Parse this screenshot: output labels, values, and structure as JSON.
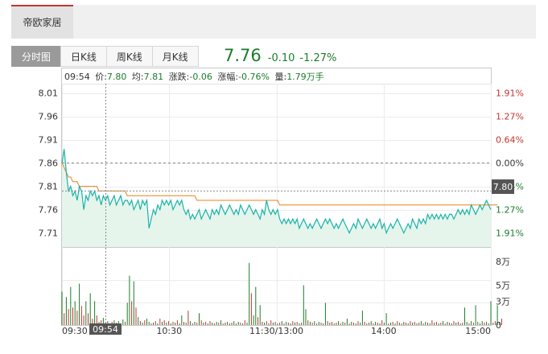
{
  "header": {
    "stock_name": "帝欧家居"
  },
  "tabs": [
    {
      "label": "分时图",
      "active": true
    },
    {
      "label": "日K线",
      "active": false
    },
    {
      "label": "周K线",
      "active": false
    },
    {
      "label": "月K线",
      "active": false
    }
  ],
  "quote": {
    "price": "7.76",
    "change": "-0.10",
    "change_pct": "-1.27%",
    "color": "#1a7d2a"
  },
  "info_line": {
    "time": "09:54",
    "price_label": "价:",
    "price": "7.80",
    "avg_label": "均:",
    "avg": "7.81",
    "chg_label": "涨跌:",
    "chg": "-0.06",
    "pct_label": "涨幅:",
    "pct": "-0.76%",
    "vol_label": "量:",
    "vol": "1.79万手"
  },
  "cursor": {
    "time_label": "09:54",
    "price_label": "7.80"
  },
  "colors": {
    "price_line": "#19b3a7",
    "avg_line": "#e8821e",
    "area_fill": "#e6f5ec",
    "up": "#c23531",
    "down": "#1a7d2a"
  },
  "chart_data": {
    "type": "line",
    "prev_close": 7.86,
    "price_axis": [
      "8.01",
      "7.96",
      "7.91",
      "7.86",
      "7.81",
      "7.76",
      "7.71"
    ],
    "pct_axis": [
      "1.91%",
      "1.27%",
      "0.64%",
      "0.00%",
      "0.64%",
      "1.27%",
      "1.91%"
    ],
    "volume_axis": [
      "8万",
      "5万",
      "3万",
      "0"
    ],
    "time_axis": [
      "09:30",
      "10:30",
      "11:30/13:00",
      "14:00",
      "15:00"
    ],
    "ylim": [
      7.68,
      8.03
    ],
    "volume_max": 85000,
    "price_series": [
      7.86,
      7.89,
      7.84,
      7.8,
      7.81,
      7.79,
      7.8,
      7.78,
      7.81,
      7.8,
      7.76,
      7.79,
      7.78,
      7.8,
      7.79,
      7.8,
      7.78,
      7.79,
      7.77,
      7.79,
      7.78,
      7.79,
      7.77,
      7.78,
      7.79,
      7.77,
      7.78,
      7.79,
      7.77,
      7.78,
      7.78,
      7.77,
      7.78,
      7.76,
      7.77,
      7.78,
      7.76,
      7.78,
      7.77,
      7.78,
      7.72,
      7.74,
      7.76,
      7.75,
      7.77,
      7.76,
      7.78,
      7.77,
      7.78,
      7.77,
      7.78,
      7.76,
      7.77,
      7.78,
      7.77,
      7.78,
      7.76,
      7.75,
      7.76,
      7.74,
      7.75,
      7.74,
      7.75,
      7.76,
      7.74,
      7.75,
      7.76,
      7.75,
      7.74,
      7.76,
      7.75,
      7.76,
      7.75,
      7.77,
      7.76,
      7.75,
      7.76,
      7.77,
      7.76,
      7.75,
      7.76,
      7.75,
      7.77,
      7.76,
      7.75,
      7.76,
      7.77,
      7.76,
      7.75,
      7.76,
      7.75,
      7.74,
      7.76,
      7.75,
      7.78,
      7.76,
      7.75,
      7.76,
      7.75,
      7.76,
      7.74,
      7.73,
      7.74,
      7.73,
      7.74,
      7.73,
      7.74,
      7.73,
      7.74,
      7.72,
      7.73,
      7.74,
      7.73,
      7.72,
      7.73,
      7.72,
      7.73,
      7.74,
      7.73,
      7.72,
      7.73,
      7.74,
      7.73,
      7.74,
      7.73,
      7.72,
      7.73,
      7.72,
      7.73,
      7.74,
      7.73,
      7.72,
      7.71,
      7.72,
      7.73,
      7.72,
      7.74,
      7.73,
      7.72,
      7.73,
      7.74,
      7.73,
      7.72,
      7.73,
      7.72,
      7.73,
      7.74,
      7.72,
      7.73,
      7.71,
      7.72,
      7.73,
      7.72,
      7.73,
      7.74,
      7.73,
      7.72,
      7.71,
      7.72,
      7.73,
      7.72,
      7.74,
      7.73,
      7.72,
      7.74,
      7.73,
      7.74,
      7.73,
      7.75,
      7.74,
      7.75,
      7.74,
      7.75,
      7.74,
      7.75,
      7.74,
      7.75,
      7.74,
      7.75,
      7.75,
      7.74,
      7.75,
      7.76,
      7.75,
      7.76,
      7.75,
      7.76,
      7.75,
      7.77,
      7.76,
      7.75,
      7.76,
      7.77,
      7.76,
      7.77,
      7.78,
      7.77,
      7.76
    ],
    "avg_series": [
      7.86,
      7.85,
      7.84,
      7.83,
      7.83,
      7.82,
      7.82,
      7.82,
      7.81,
      7.81,
      7.81,
      7.81,
      7.81,
      7.81,
      7.81,
      7.81,
      7.81,
      7.8,
      7.8,
      7.8,
      7.8,
      7.8,
      7.8,
      7.8,
      7.8,
      7.8,
      7.8,
      7.8,
      7.8,
      7.8,
      7.79,
      7.79,
      7.79,
      7.79,
      7.79,
      7.79,
      7.79,
      7.79,
      7.79,
      7.79,
      7.79,
      7.79,
      7.79,
      7.79,
      7.79,
      7.79,
      7.79,
      7.79,
      7.79,
      7.79,
      7.79,
      7.79,
      7.79,
      7.79,
      7.79,
      7.79,
      7.79,
      7.79,
      7.79,
      7.79,
      7.79,
      7.79,
      7.78,
      7.78,
      7.78,
      7.78,
      7.78,
      7.78,
      7.78,
      7.78,
      7.78,
      7.78,
      7.78,
      7.78,
      7.78,
      7.78,
      7.78,
      7.78,
      7.78,
      7.78,
      7.78,
      7.78,
      7.78,
      7.78,
      7.78,
      7.78,
      7.78,
      7.78,
      7.78,
      7.78,
      7.78,
      7.78,
      7.78,
      7.78,
      7.78,
      7.78,
      7.78,
      7.78,
      7.78,
      7.78,
      7.77,
      7.77,
      7.77,
      7.77,
      7.77,
      7.77,
      7.77,
      7.77,
      7.77,
      7.77,
      7.77,
      7.77,
      7.77,
      7.77,
      7.77,
      7.77,
      7.77,
      7.77,
      7.77,
      7.77,
      7.77,
      7.77,
      7.77,
      7.77,
      7.77,
      7.77,
      7.77,
      7.77,
      7.77,
      7.77,
      7.77,
      7.77,
      7.77,
      7.77,
      7.77,
      7.77,
      7.77,
      7.77,
      7.77,
      7.77,
      7.77,
      7.77,
      7.77,
      7.77,
      7.77,
      7.77,
      7.77,
      7.77,
      7.77,
      7.77,
      7.77,
      7.77,
      7.77,
      7.77,
      7.77,
      7.77,
      7.77,
      7.77,
      7.77,
      7.77,
      7.77,
      7.77,
      7.77,
      7.77,
      7.77,
      7.77,
      7.77,
      7.77,
      7.77,
      7.77,
      7.77,
      7.77,
      7.77,
      7.77,
      7.77,
      7.77,
      7.77,
      7.77,
      7.77,
      7.77,
      7.77,
      7.77,
      7.77,
      7.77,
      7.77,
      7.77,
      7.77,
      7.77,
      7.77,
      7.77,
      7.77,
      7.77,
      7.77,
      7.77,
      7.77,
      7.77,
      7.77,
      7.77,
      7.77,
      7.77,
      7.77
    ],
    "volume_series": [
      42000,
      15000,
      35000,
      20000,
      48000,
      22000,
      30000,
      18000,
      52000,
      24000,
      12000,
      30000,
      15000,
      40000,
      8000,
      30000,
      12000,
      4000,
      6000,
      9000,
      3000,
      5000,
      2000,
      4000,
      6000,
      3000,
      5000,
      2000,
      7000,
      4000,
      28000,
      62000,
      30000,
      55000,
      22000,
      10000,
      5000,
      3000,
      6000,
      8000,
      4000,
      2000,
      3000,
      5000,
      2000,
      8000,
      4000,
      6000,
      3000,
      5000,
      2000,
      4000,
      3000,
      6000,
      2000,
      12000,
      4000,
      3000,
      18000,
      5000,
      2000,
      4000,
      3000,
      15000,
      6000,
      3000,
      4000,
      2000,
      5000,
      3000,
      2000,
      4000,
      3000,
      6000,
      2000,
      3000,
      4000,
      2000,
      3000,
      5000,
      2000,
      4000,
      3000,
      2000,
      6000,
      3000,
      78000,
      40000,
      12000,
      48000,
      10000,
      25000,
      4000,
      3000,
      5000,
      2000,
      6000,
      3000,
      4000,
      2000,
      3000,
      5000,
      2000,
      4000,
      3000,
      2000,
      5000,
      3000,
      4000,
      2000,
      3000,
      50000,
      20000,
      6000,
      4000,
      3000,
      5000,
      2000,
      4000,
      3000,
      2000,
      28000,
      5000,
      3000,
      4000,
      2000,
      3000,
      5000,
      2000,
      4000,
      3000,
      8000,
      2000,
      4000,
      3000,
      2000,
      5000,
      3000,
      18000,
      4000,
      2000,
      3000,
      5000,
      2000,
      4000,
      3000,
      2000,
      6000,
      3000,
      15000,
      2000,
      3000,
      4000,
      2000,
      5000,
      3000,
      2000,
      4000,
      3000,
      2000,
      5000,
      3000,
      4000,
      2000,
      3000,
      5000,
      2000,
      4000,
      3000,
      2000,
      6000,
      3000,
      4000,
      2000,
      3000,
      5000,
      2000,
      4000,
      3000,
      2000,
      5000,
      3000,
      4000,
      2000,
      3000,
      22000,
      4000,
      2000,
      5000,
      3000,
      25000,
      4000,
      2000,
      5000,
      3000,
      4000,
      2000,
      30000,
      3000,
      5000,
      25000,
      4000,
      8000
    ],
    "volume_up": [
      false,
      true,
      false,
      true,
      false,
      true,
      false,
      true,
      false,
      true,
      true,
      false,
      true,
      false,
      true,
      false,
      true,
      false,
      true,
      false,
      false,
      true,
      false,
      true,
      false,
      true,
      false,
      true,
      false,
      true,
      false,
      false,
      true,
      false,
      true,
      false,
      true,
      false,
      true,
      false,
      false,
      true,
      false,
      true,
      false,
      true,
      false,
      true,
      false,
      true,
      false,
      true,
      false,
      true,
      false,
      false,
      true,
      false,
      true,
      false,
      true,
      false,
      true,
      false,
      true,
      false,
      true,
      false,
      true,
      false,
      true,
      false,
      true,
      false,
      true,
      false,
      true,
      false,
      true,
      false,
      true,
      false,
      true,
      false,
      true,
      false,
      false,
      true,
      false,
      false,
      true,
      false,
      true,
      false,
      true,
      false,
      true,
      false,
      true,
      false,
      true,
      false,
      true,
      false,
      true,
      false,
      true,
      false,
      true,
      false,
      true,
      false,
      false,
      true,
      false,
      true,
      false,
      true,
      false,
      true,
      false,
      false,
      true,
      false,
      true,
      false,
      true,
      false,
      true,
      false,
      true,
      false,
      true,
      false,
      true,
      false,
      true,
      false,
      false,
      true,
      false,
      true,
      false,
      true,
      false,
      true,
      false,
      true,
      false,
      false,
      true,
      false,
      true,
      false,
      true,
      false,
      true,
      false,
      true,
      false,
      true,
      false,
      true,
      false,
      true,
      false,
      true,
      false,
      true,
      false,
      true,
      false,
      true,
      false,
      true,
      false,
      true,
      false,
      true,
      false,
      true,
      false,
      true,
      false,
      true,
      false,
      false,
      true,
      false,
      true,
      false,
      false,
      true,
      false,
      true,
      false,
      true,
      false,
      false,
      true,
      false,
      false,
      true,
      false
    ]
  }
}
